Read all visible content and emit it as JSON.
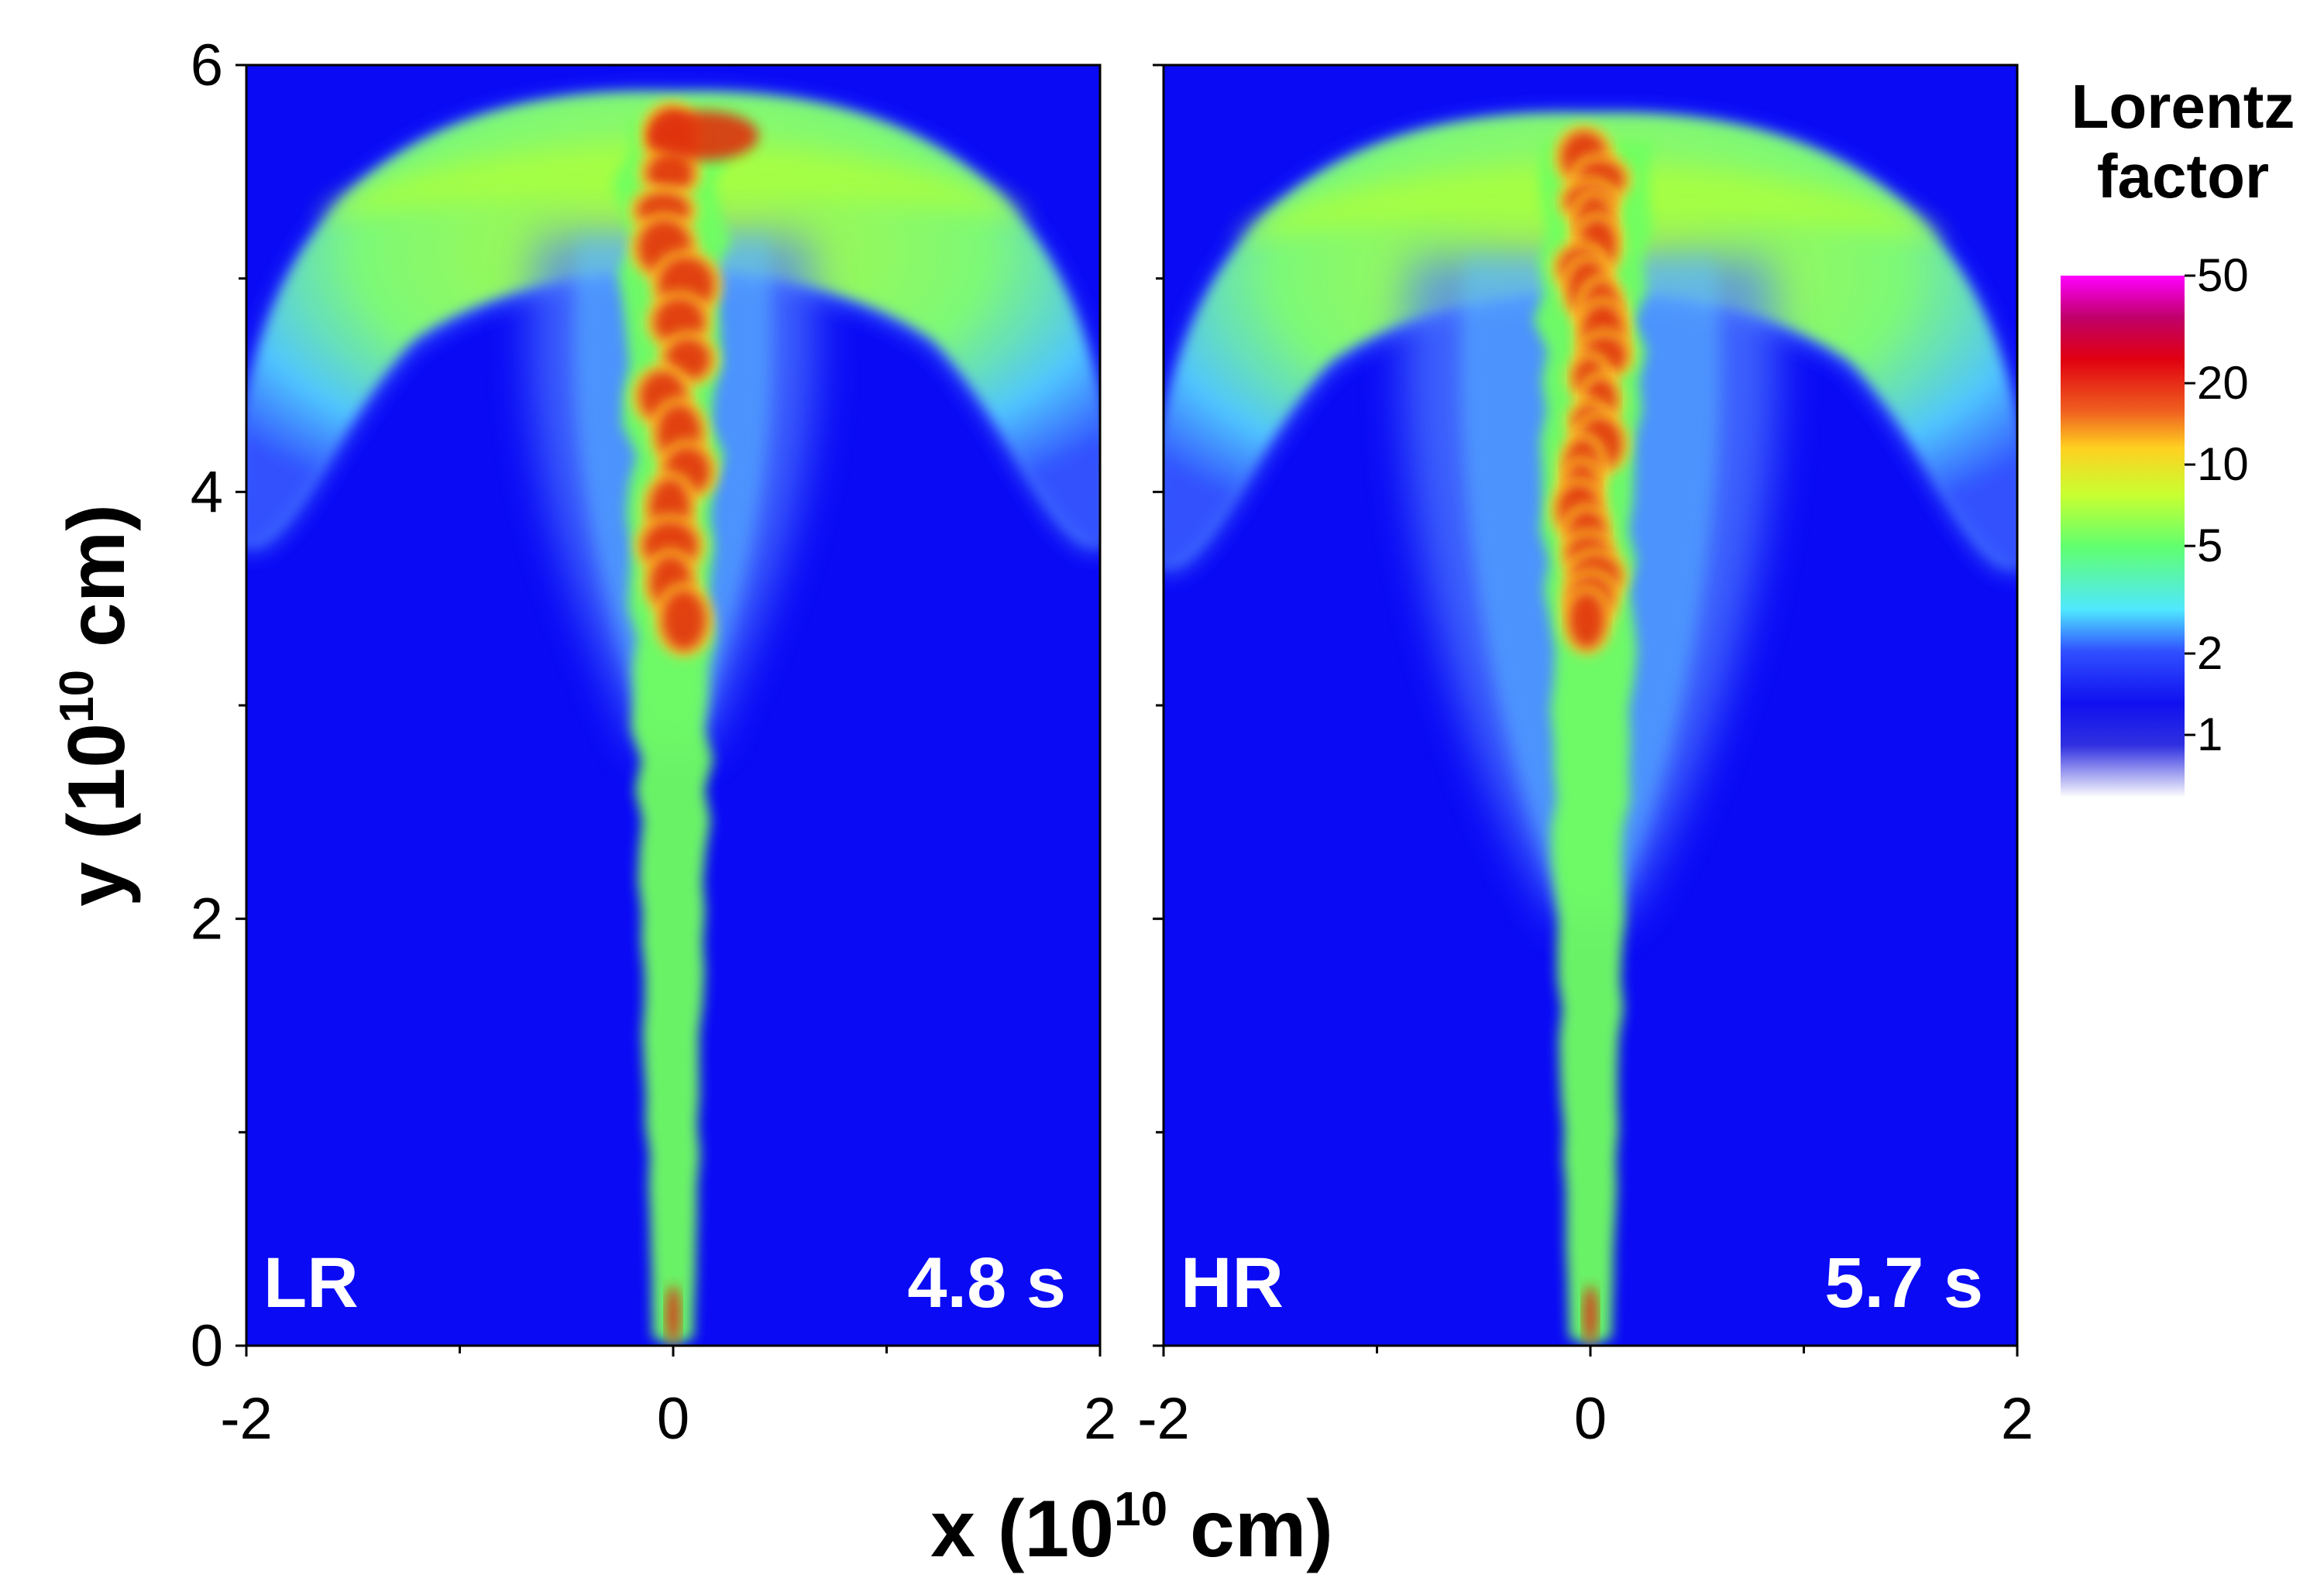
{
  "chart_data": {
    "type": "heatmap",
    "xlabel_main": "x (10",
    "xlabel_exp": "10",
    "xlabel_unit": " cm)",
    "ylabel_main": "y (10",
    "ylabel_exp": "10",
    "ylabel_unit": " cm)",
    "xlim": [
      -2,
      2
    ],
    "ylim": [
      0,
      6
    ],
    "x_ticks": [
      -2,
      0,
      2
    ],
    "y_ticks": [
      0,
      2,
      4,
      6
    ],
    "panels": [
      {
        "label": "LR",
        "time": "4.8 s",
        "x_tick_labels": [
          "-2",
          "0",
          "2"
        ]
      },
      {
        "label": "HR",
        "time": "5.7 s",
        "x_tick_labels": [
          "-2",
          "0",
          "2"
        ]
      }
    ],
    "y_tick_labels": [
      "0",
      "2",
      "4",
      "6"
    ],
    "colorbar": {
      "title_line1": "Lorentz",
      "title_line2": "factor",
      "scale": "log",
      "ticks": [
        "50",
        "20",
        "10",
        "5",
        "2",
        "1"
      ],
      "tick_values": [
        50,
        20,
        10,
        5,
        2,
        1
      ]
    }
  },
  "colors": {
    "background_low": "#0a0af5",
    "cocoon": "#8fff4a",
    "jet_core": "#e03010",
    "colorbar_top": "#ff00ff"
  }
}
